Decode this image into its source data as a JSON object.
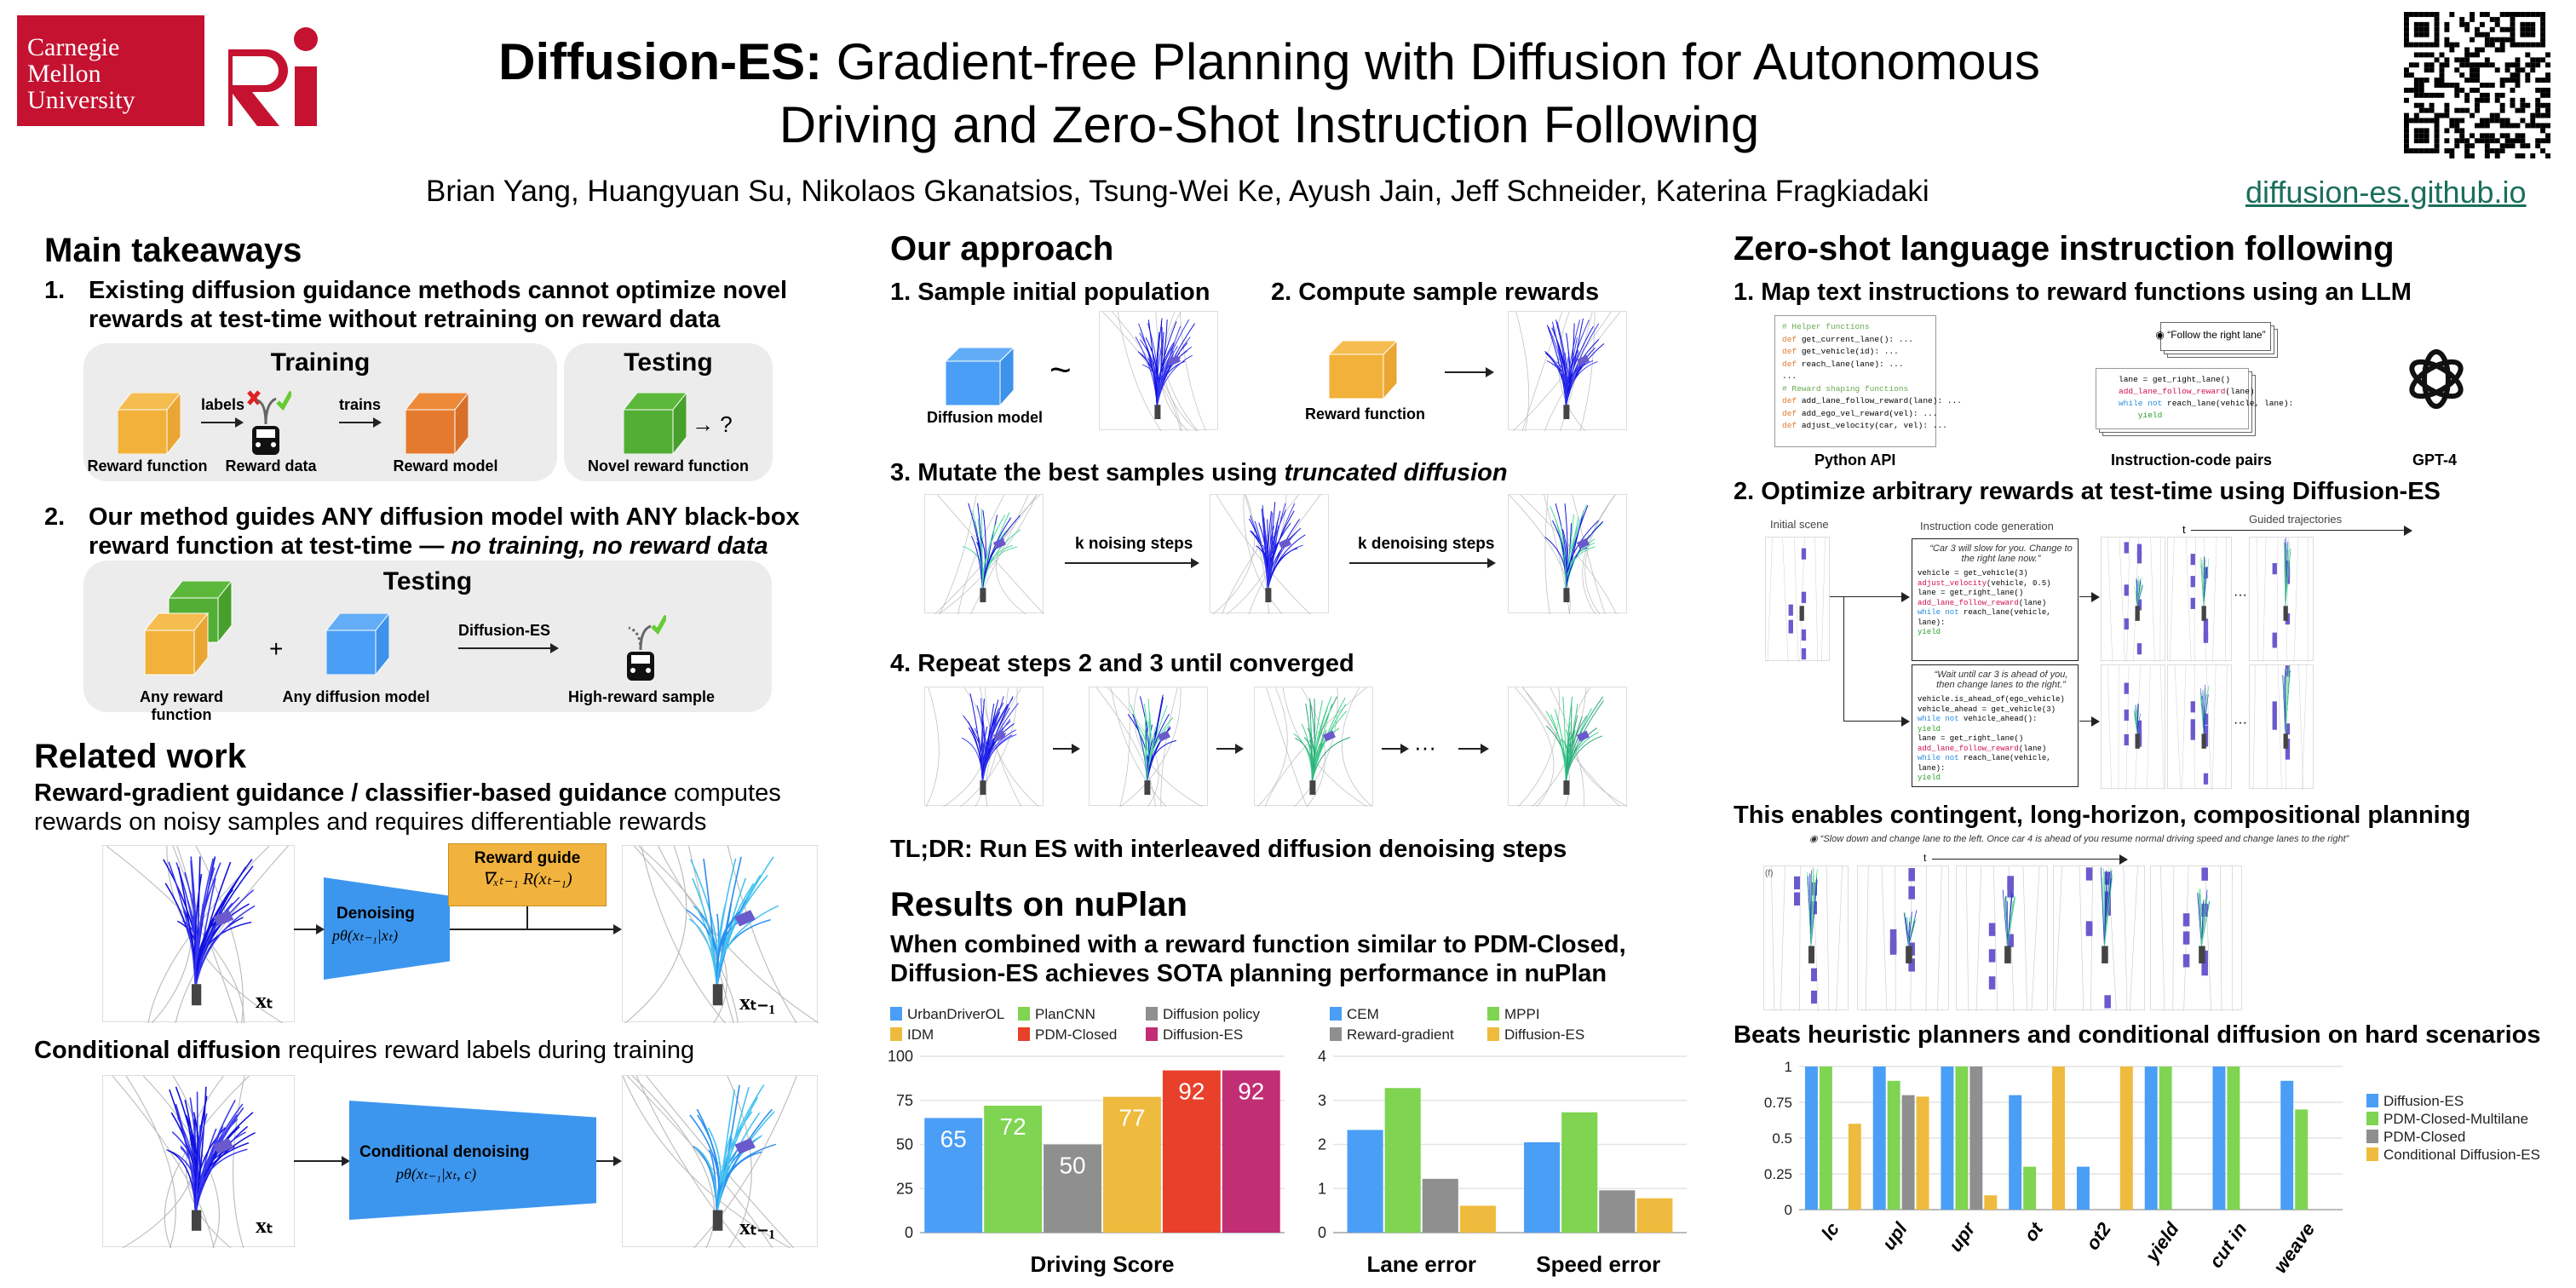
{
  "header": {
    "cmu_logo": "Carnegie Mellon University",
    "ri_logo": "Ri",
    "title_bold": "Diffusion-ES:",
    "title_rest": "Gradient-free Planning with Diffusion for Autonomous",
    "title_line2": "Driving and Zero-Shot Instruction Following",
    "authors": "Brian Yang, Huangyuan Su, Nikolaos Gkanatsios, Tsung-Wei Ke, Ayush Jain, Jeff Schneider, Katerina Fragkiadaki",
    "link": "diffusion-es.github.io",
    "link_color": "#1a6f5a"
  },
  "takeaways": {
    "title": "Main takeaways",
    "item1_num": "1.",
    "item1": "Existing diffusion guidance methods cannot optimize novel rewards at test-time without retraining on reward data",
    "training_title": "Training",
    "testing_title": "Testing",
    "labels": "labels",
    "trains": "trains",
    "reward_function": "Reward function",
    "reward_data": "Reward data",
    "reward_model": "Reward model",
    "novel_reward": "Novel reward function",
    "question": "→ ?",
    "item2_num": "2.",
    "item2_a": "Our method guides ANY diffusion model with ANY black-box reward function at test-time — ",
    "item2_b": "no training, no reward data",
    "testing2_title": "Testing",
    "any_reward": "Any reward function",
    "plus": "+",
    "any_diffusion": "Any diffusion model",
    "diffusion_es": "Diffusion-ES",
    "high_reward": "High-reward sample"
  },
  "related": {
    "title": "Related work",
    "rg_bold": "Reward-gradient guidance / classifier-based guidance",
    "rg_rest": " computes rewards on noisy samples and requires differentiable rewards",
    "denoising": "Denoising",
    "denoising_formula": "pθ(xₜ₋₁|xₜ)",
    "reward_guide": "Reward guide",
    "reward_guide_formula": "∇ₓₜ₋₁ R(xₜ₋₁)",
    "xt": "xₜ",
    "xt1": "xₜ₋₁",
    "cd_bold": "Conditional diffusion",
    "cd_rest": " requires reward labels during training",
    "cond_denoising": "Conditional denoising",
    "cond_formula": "pθ(xₜ₋₁|xₜ, c)"
  },
  "approach": {
    "title": "Our approach",
    "step1": "1. Sample initial population",
    "step2": "2. Compute sample rewards",
    "diffusion_model": "Diffusion model",
    "tilde": "~",
    "reward_function": "Reward function",
    "step3_a": "3. Mutate the best samples using ",
    "step3_b": "truncated diffusion",
    "k_noising": "k noising steps",
    "k_denoising": "k denoising steps",
    "step4": "4. Repeat steps 2 and 3 until converged",
    "dots": "···",
    "tldr": "TL;DR: Run ES with interleaved diffusion denoising steps"
  },
  "results": {
    "title": "Results on nuPlan",
    "subtitle": "When combined with a reward function similar to PDM-Closed, Diffusion-ES achieves SOTA planning performance in nuPlan"
  },
  "zeroshot": {
    "title": "Zero-shot language instruction following",
    "step1": "1.  Map text instructions to reward functions using an LLM",
    "python_api_code": [
      [
        "cm",
        "# Helper functions"
      ],
      [
        "def",
        "get_current_lane(): ..."
      ],
      [
        "def",
        "get_vehicle(id): ..."
      ],
      [
        "def",
        "reach_lane(lane): ..."
      ],
      [
        "",
        "..."
      ],
      [
        "cm",
        "# Reward shaping functions"
      ],
      [
        "def",
        "add_lane_follow_reward(lane): ..."
      ],
      [
        "def",
        "add_ego_vel_reward(vel): ..."
      ],
      [
        "def",
        "adjust_velocity(car, vel): ..."
      ]
    ],
    "python_api": "Python API",
    "instruction": "“Follow the right lane”",
    "pair_code": [
      "lane = get_right_lane()",
      "add_lane_follow_reward",
      "(lane)",
      "while not",
      " reach_lane(vehicle, lane):",
      "yield"
    ],
    "instruction_pairs": "Instruction-code pairs",
    "gpt4": "GPT-4",
    "step2": "2.  Optimize arbitrary rewards at test-time using Diffusion-ES",
    "initial_scene": "Initial scene",
    "code_gen": "Instruction code generation",
    "guided": "Guided trajectories",
    "t": "t",
    "instr_a": "“Car 3 will slow for you. Change to the right lane now.”",
    "code_a": [
      "vehicle = get_vehicle(3)",
      "adjust_velocity(vehicle, 0.5)",
      "lane = get_right_lane()",
      "add_lane_follow_reward(lane)",
      "while not reach_lane(vehicle, lane):",
      "    yield"
    ],
    "instr_b": "“Wait until car 3 is ahead of you, then change lanes to the right.”",
    "code_b": [
      "vehicle.is_ahead_of(ego_vehicle)",
      "vehicle_ahead = get_vehicle(3)",
      "while not vehicle_ahead():",
      "    yield",
      "lane = get_right_lane()",
      "add_lane_follow_reward(lane)",
      "while not reach_lane(vehicle, lane):",
      "    yield"
    ],
    "car_num": "3",
    "dots": "···",
    "enables": "This enables contingent, long-horizon, compositional planning",
    "long_instr": "“Slow down and change lane to the left.  Once car 4 is ahead of you resume normal driving speed and change lanes to the right”",
    "panel_tag": "(f)",
    "beats": "Beats heuristic planners and conditional diffusion on hard scenarios"
  },
  "chart_data": [
    {
      "type": "bar",
      "title": "",
      "xlabel": "",
      "ylabel": "",
      "categories": [
        "Driving Score"
      ],
      "ylim": [
        0,
        100
      ],
      "yticks": [
        0,
        25,
        50,
        75,
        100
      ],
      "grid": true,
      "legend": "top",
      "data_labels": true,
      "series": [
        {
          "name": "UrbanDriverOL",
          "values": [
            65
          ],
          "color": "#4a9ef5"
        },
        {
          "name": "PlanCNN",
          "values": [
            72
          ],
          "color": "#7fd451"
        },
        {
          "name": "Diffusion policy",
          "values": [
            50
          ],
          "color": "#8f8f8f"
        },
        {
          "name": "IDM",
          "values": [
            77
          ],
          "color": "#efbb3e"
        },
        {
          "name": "PDM-Closed",
          "values": [
            92
          ],
          "color": "#e8402a"
        },
        {
          "name": "Diffusion-ES",
          "values": [
            92
          ],
          "color": "#c12e74"
        }
      ]
    },
    {
      "type": "bar",
      "title": "",
      "xlabel": "",
      "ylabel": "",
      "categories": [
        "Lane error",
        "Speed error"
      ],
      "ylim": [
        0,
        4
      ],
      "yticks": [
        0,
        1,
        2,
        3,
        4
      ],
      "grid": true,
      "legend": "top",
      "series": [
        {
          "name": "CEM",
          "values": [
            2.33,
            2.05
          ],
          "color": "#4a9ef5"
        },
        {
          "name": "MPPI",
          "values": [
            3.28,
            2.73
          ],
          "color": "#7fd451"
        },
        {
          "name": "Reward-gradient",
          "values": [
            1.22,
            0.96
          ],
          "color": "#8f8f8f"
        },
        {
          "name": "Diffusion-ES",
          "values": [
            0.61,
            0.78
          ],
          "color": "#efbb3e"
        }
      ]
    },
    {
      "type": "bar",
      "title": "",
      "xlabel": "",
      "ylabel": "",
      "categories": [
        "lc",
        "upl",
        "upr",
        "ot",
        "ot2",
        "yield",
        "cut in",
        "weave"
      ],
      "ylim": [
        0,
        1
      ],
      "yticks": [
        0,
        0.25,
        0.5,
        0.75,
        1
      ],
      "grid": true,
      "legend": "right",
      "series": [
        {
          "name": "Diffusion-ES",
          "values": [
            1,
            1,
            1,
            0.8,
            0.3,
            1,
            1,
            0.9
          ],
          "color": "#4a9ef5"
        },
        {
          "name": "PDM-Closed-Multilane",
          "values": [
            1,
            0.9,
            1,
            0.3,
            0,
            1,
            1,
            0.7
          ],
          "color": "#7fd451"
        },
        {
          "name": "PDM-Closed",
          "values": [
            0,
            0.8,
            1,
            0,
            0,
            0,
            0,
            0
          ],
          "color": "#8f8f8f"
        },
        {
          "name": "Conditional Diffusion-ES",
          "values": [
            0.6,
            0.79,
            0.1,
            1,
            1,
            0,
            0,
            0
          ],
          "color": "#efbb3e"
        }
      ]
    }
  ]
}
